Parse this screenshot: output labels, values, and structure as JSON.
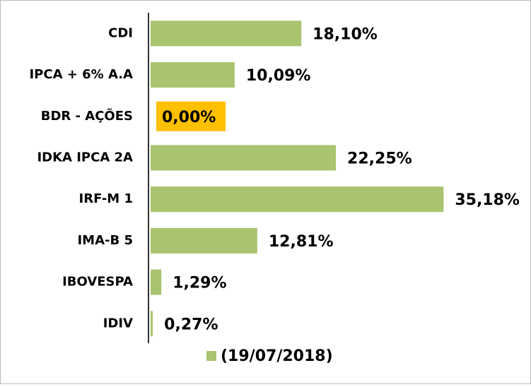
{
  "chart_data": {
    "type": "hbar",
    "categories": [
      "CDI",
      "IPCA + 6% A.A",
      "BDR - AÇÕES",
      "IDKA IPCA 2A",
      "IRF-M 1",
      "IMA-B 5",
      "IBOVESPA",
      "IDIV"
    ],
    "series": [
      {
        "name": "(19/07/2018)",
        "color": "#a9c46f",
        "values": [
          18.1,
          10.09,
          0.0,
          22.25,
          35.18,
          12.81,
          1.29,
          0.27
        ],
        "value_labels": [
          "18,10%",
          "10,09%",
          "0,00%",
          "22,25%",
          "35,18%",
          "12,81%",
          "1,29%",
          "0,27%"
        ]
      }
    ],
    "xlim": [
      0,
      45
    ],
    "highlight": {
      "index": 2,
      "color": "#ffc000"
    },
    "legend": "bottom"
  }
}
